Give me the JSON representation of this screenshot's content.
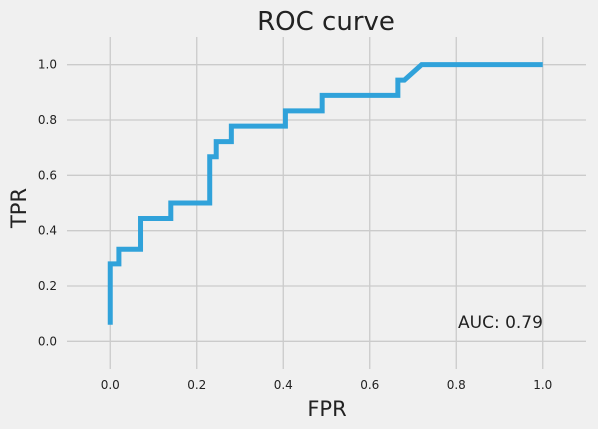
{
  "chart_data": {
    "type": "line",
    "title": "ROC curve",
    "xlabel": "FPR",
    "ylabel": "TPR",
    "xlim": [
      -0.1,
      1.1
    ],
    "ylim": [
      -0.1,
      1.1
    ],
    "xticks": [
      0.0,
      0.2,
      0.4,
      0.6,
      0.8,
      1.0
    ],
    "yticks": [
      0.0,
      0.2,
      0.4,
      0.6,
      0.8,
      1.0
    ],
    "xtick_labels": [
      "0.0",
      "0.2",
      "0.4",
      "0.6",
      "0.8",
      "1.0"
    ],
    "ytick_labels": [
      "0.0",
      "0.2",
      "0.4",
      "0.6",
      "0.8",
      "1.0"
    ],
    "grid": true,
    "annotation": "AUC: 0.79",
    "colors": {
      "line": "#30a2da",
      "background": "#f0f0f0",
      "grid": "#cbcbcb"
    },
    "series": [
      {
        "x": [
          0.0,
          0.0,
          0.02,
          0.02,
          0.07,
          0.07,
          0.14,
          0.14,
          0.23,
          0.23,
          0.245,
          0.245,
          0.28,
          0.28,
          0.405,
          0.405,
          0.49,
          0.49,
          0.665,
          0.665,
          0.68,
          0.72,
          1.0
        ],
        "y": [
          0.06,
          0.28,
          0.28,
          0.333,
          0.333,
          0.444,
          0.444,
          0.5,
          0.5,
          0.667,
          0.667,
          0.722,
          0.722,
          0.778,
          0.778,
          0.833,
          0.833,
          0.889,
          0.889,
          0.944,
          0.944,
          1.0,
          1.0
        ]
      }
    ]
  }
}
